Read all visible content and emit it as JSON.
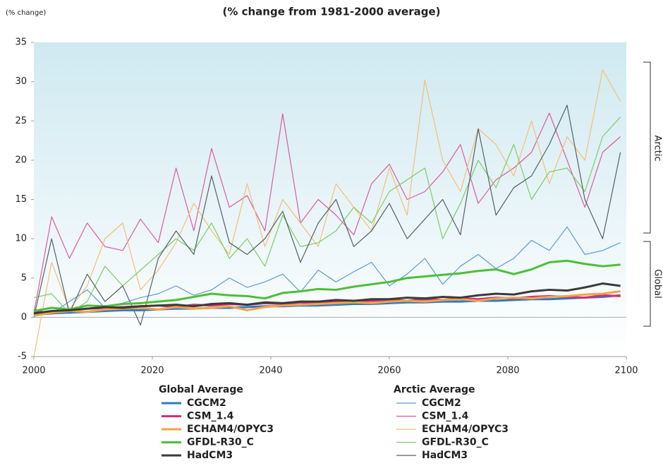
{
  "chart_data": {
    "type": "line",
    "title": "(% change from 1981-2000 average)",
    "y_label": "(% change)",
    "annotations": [
      "Arctic",
      "Global"
    ],
    "x": [
      2000,
      2003,
      2006,
      2009,
      2012,
      2015,
      2018,
      2021,
      2024,
      2027,
      2030,
      2033,
      2036,
      2039,
      2042,
      2045,
      2048,
      2051,
      2054,
      2057,
      2060,
      2063,
      2066,
      2069,
      2072,
      2075,
      2078,
      2081,
      2084,
      2087,
      2090,
      2093,
      2096,
      2099
    ],
    "xlim": [
      2000,
      2100
    ],
    "xticks": [
      2000,
      2020,
      2040,
      2060,
      2080,
      2100
    ],
    "ylim": [
      -5,
      35
    ],
    "yticks": [
      -5,
      0,
      5,
      10,
      15,
      20,
      25,
      30,
      35
    ],
    "groups": [
      {
        "name": "Global Average",
        "line_width": 3,
        "series": [
          {
            "name": "CGCM2",
            "color": "#2b7bc4",
            "values": [
              0.3,
              0.5,
              0.6,
              0.7,
              0.8,
              0.9,
              0.9,
              1.0,
              1.1,
              1.1,
              1.2,
              1.2,
              1.3,
              1.4,
              1.4,
              1.5,
              1.5,
              1.6,
              1.7,
              1.7,
              1.8,
              1.9,
              1.9,
              2.0,
              2.0,
              2.1,
              2.1,
              2.2,
              2.3,
              2.3,
              2.4,
              2.5,
              2.6,
              2.8
            ]
          },
          {
            "name": "CSM_1.4",
            "color": "#d42f76",
            "values": [
              0.8,
              0.5,
              0.9,
              1.1,
              1.2,
              1.3,
              1.4,
              1.5,
              1.3,
              1.6,
              1.5,
              1.7,
              1.6,
              1.8,
              1.7,
              1.9,
              1.8,
              2.0,
              2.0,
              2.1,
              2.2,
              2.1,
              2.3,
              2.2,
              2.4,
              2.3,
              2.5,
              2.4,
              2.6,
              2.7,
              2.6,
              2.5,
              2.8,
              2.7
            ]
          },
          {
            "name": "ECHAM4/OPYC3",
            "color": "#f0a546",
            "values": [
              0.2,
              0.6,
              0.8,
              0.7,
              1.0,
              1.1,
              1.2,
              1.0,
              1.3,
              1.1,
              1.2,
              1.4,
              0.9,
              1.3,
              1.5,
              1.6,
              1.7,
              1.8,
              1.9,
              1.8,
              2.0,
              2.1,
              2.0,
              2.2,
              2.3,
              2.1,
              2.4,
              2.5,
              2.4,
              2.6,
              2.7,
              2.9,
              3.0,
              3.3
            ]
          },
          {
            "name": "GFDL-R30_C",
            "color": "#4cbf36",
            "values": [
              0.8,
              1.2,
              1.0,
              1.5,
              1.4,
              1.7,
              1.8,
              2.0,
              2.2,
              2.6,
              3.0,
              2.8,
              2.7,
              2.4,
              3.1,
              3.3,
              3.6,
              3.5,
              3.9,
              4.2,
              4.5,
              5.0,
              5.2,
              5.4,
              5.6,
              5.9,
              6.1,
              5.5,
              6.1,
              7.0,
              7.2,
              6.8,
              6.5,
              6.7
            ]
          },
          {
            "name": "HadCM3",
            "color": "#3a3a3a",
            "values": [
              0.5,
              0.8,
              0.9,
              1.1,
              1.3,
              1.2,
              1.4,
              1.5,
              1.6,
              1.4,
              1.7,
              1.8,
              1.6,
              1.9,
              1.8,
              2.0,
              2.0,
              2.2,
              2.1,
              2.3,
              2.3,
              2.5,
              2.4,
              2.6,
              2.5,
              2.8,
              3.0,
              2.9,
              3.3,
              3.5,
              3.4,
              3.8,
              4.3,
              4.0
            ]
          }
        ]
      },
      {
        "name": "Arctic Average",
        "line_width": 1.2,
        "series": [
          {
            "name": "CGCM2",
            "color": "#5b9bd8",
            "values": [
              1.0,
              0.5,
              2.0,
              3.5,
              1.2,
              1.8,
              2.5,
              3.0,
              4.0,
              2.8,
              3.5,
              5.0,
              3.8,
              4.5,
              5.5,
              3.2,
              6.0,
              4.5,
              5.8,
              7.0,
              4.0,
              5.5,
              7.5,
              4.2,
              6.5,
              8.0,
              6.2,
              7.5,
              9.8,
              8.5,
              11.5,
              8.0,
              8.5,
              9.5
            ]
          },
          {
            "name": "CSM_1.4",
            "color": "#dc5aa0",
            "values": [
              0.5,
              12.8,
              7.5,
              12.0,
              9.0,
              8.5,
              12.5,
              9.5,
              19.0,
              11.0,
              21.5,
              14.0,
              15.5,
              11.0,
              25.9,
              12.0,
              15.0,
              13.0,
              10.5,
              17.0,
              19.5,
              15.0,
              16.0,
              18.5,
              22.0,
              14.5,
              17.5,
              19.0,
              21.0,
              26.0,
              20.0,
              14.0,
              21.0,
              23.0
            ]
          },
          {
            "name": "ECHAM4/OPYC3",
            "color": "#f5bf73",
            "values": [
              -5.0,
              7.0,
              1.0,
              4.0,
              10.0,
              12.0,
              3.5,
              6.0,
              9.5,
              14.5,
              11.0,
              8.0,
              17.0,
              9.0,
              15.0,
              12.0,
              9.0,
              17.0,
              14.0,
              11.0,
              19.0,
              13.0,
              30.2,
              20.0,
              16.0,
              24.0,
              22.0,
              18.0,
              25.0,
              17.0,
              23.0,
              20.0,
              31.5,
              27.5
            ]
          },
          {
            "name": "GFDL-R30_C",
            "color": "#7ccd63",
            "values": [
              2.5,
              3.0,
              0.5,
              2.0,
              6.5,
              4.0,
              6.0,
              8.0,
              10.0,
              8.5,
              12.0,
              7.5,
              10.0,
              6.5,
              13.0,
              9.0,
              9.5,
              11.0,
              14.0,
              12.0,
              16.0,
              17.5,
              19.0,
              10.0,
              14.5,
              20.0,
              16.5,
              22.0,
              15.0,
              18.5,
              19.0,
              16.0,
              23.0,
              25.5
            ]
          },
          {
            "name": "HadCM3",
            "color": "#556068",
            "values": [
              0.0,
              10.0,
              0.5,
              5.5,
              2.0,
              4.0,
              -1.0,
              7.5,
              11.0,
              8.0,
              18.0,
              9.5,
              8.0,
              10.0,
              13.5,
              7.0,
              12.0,
              15.0,
              9.0,
              11.0,
              14.5,
              10.0,
              12.5,
              15.0,
              10.5,
              24.0,
              13.0,
              16.5,
              18.0,
              22.0,
              27.0,
              15.0,
              10.0,
              21.0
            ]
          }
        ]
      }
    ]
  }
}
